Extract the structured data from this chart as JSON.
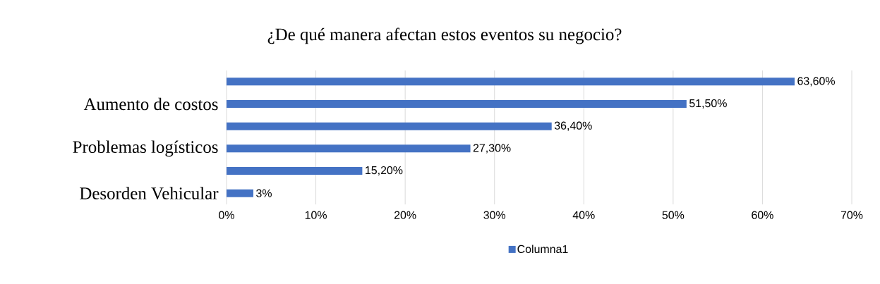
{
  "chart_data": {
    "type": "bar",
    "orientation": "horizontal",
    "title": "¿De qué manera afectan estos eventos su negocio?",
    "categories": [
      null,
      "Aumento de costos",
      null,
      "Problemas logísticos",
      null,
      "Desorden Vehicular"
    ],
    "series": [
      {
        "name": "Columna1",
        "color": "#4472c4",
        "values": [
          63.6,
          51.5,
          36.4,
          27.3,
          15.2,
          3
        ],
        "value_labels": [
          "63,60%",
          "51,50%",
          "36,40%",
          "27,30%",
          "15,20%",
          "3%"
        ]
      }
    ],
    "xlim": [
      0,
      70
    ],
    "xticks": [
      {
        "value": 0,
        "label": "0%"
      },
      {
        "value": 10,
        "label": "10%"
      },
      {
        "value": 20,
        "label": "20%"
      },
      {
        "value": 30,
        "label": "30%"
      },
      {
        "value": 40,
        "label": "40%"
      },
      {
        "value": 50,
        "label": "50%"
      },
      {
        "value": 60,
        "label": "60%"
      },
      {
        "value": 70,
        "label": "70%"
      }
    ],
    "grid": "x",
    "legend": "bottom"
  }
}
